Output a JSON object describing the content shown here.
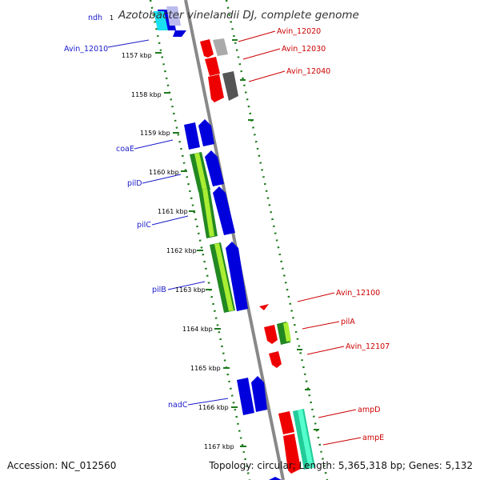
{
  "title": "Azotobacter vinelandii DJ, complete genome",
  "accession": "Accession: NC_012560",
  "topology": "Topology: circular; Length: 5,365,318 bp; Genes: 5,132",
  "colors": {
    "forward_gene": "#0000dd",
    "reverse_gene": "#ee0000",
    "left_label": "#1a1acc",
    "right_label": "#cc0000",
    "backbone": "#888888",
    "tick": "#1e7a1e"
  },
  "ticks": [
    "1157 kbp",
    "1158 kbp",
    "1159 kbp",
    "1160 kbp",
    "1161 kbp",
    "1162 kbp",
    "1163 kbp",
    "1164 kbp",
    "1165 kbp",
    "1166 kbp",
    "1167 kbp"
  ],
  "left_labels": [
    "ndh",
    "Avin_12010",
    "coaE",
    "pilD",
    "pilC",
    "pilB",
    "nadC"
  ],
  "right_labels": [
    "Avin_12020",
    "Avin_12030",
    "Avin_12040",
    "Avin_12100",
    "pilA",
    "Avin_12107",
    "ampD",
    "ampE"
  ],
  "partial_tick_text": "1"
}
